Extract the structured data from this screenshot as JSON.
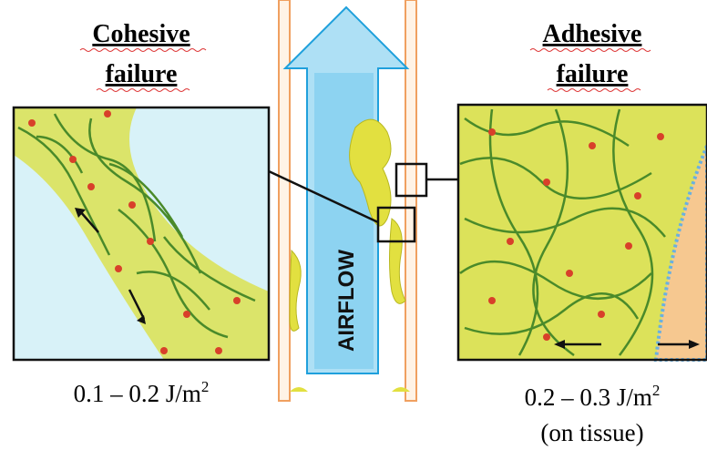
{
  "left": {
    "title": [
      "Cohesive",
      "failure"
    ],
    "value": {
      "text": "0.1 – 0.2 J/m",
      "sup": "2"
    }
  },
  "center": {
    "label": "AIRFLOW"
  },
  "right": {
    "title": [
      "Adhesive",
      "failure"
    ],
    "value": {
      "text": "0.2 – 0.3 J/m",
      "sup": "2"
    },
    "note": "(on tissue)"
  }
}
